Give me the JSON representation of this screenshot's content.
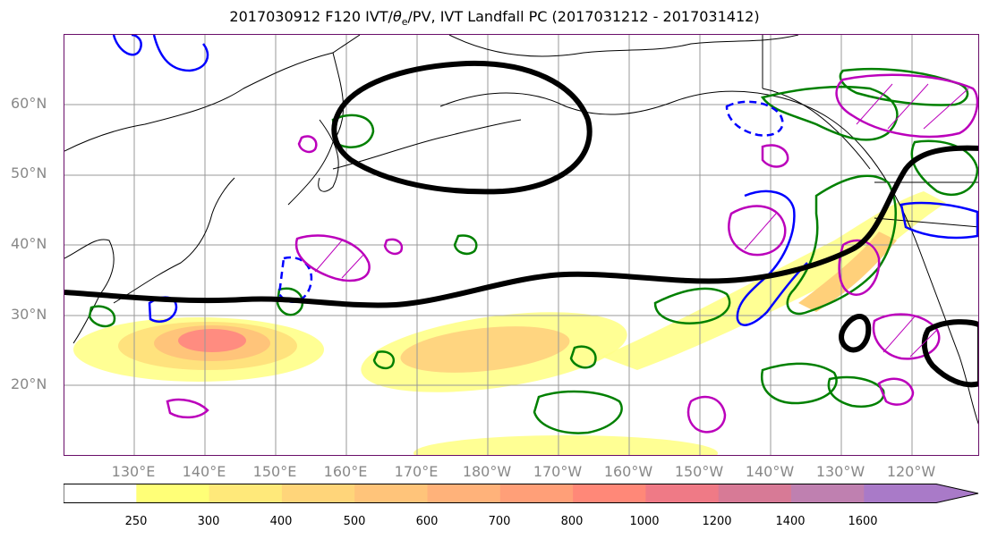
{
  "title": {
    "prefix": "2017030912 F120 IVT/",
    "theta": "θ",
    "theta_sub": "e",
    "suffix": "/PV, IVT Landfall PC (2017031212 - 2017031412)"
  },
  "lat_labels": [
    "60°N",
    "50°N",
    "40°N",
    "30°N",
    "20°N"
  ],
  "lon_labels": [
    "130°E",
    "140°E",
    "150°E",
    "160°E",
    "170°E",
    "180°W",
    "170°W",
    "160°W",
    "150°W",
    "140°W",
    "130°W",
    "120°W"
  ],
  "colorbar": {
    "ticks": [
      "250",
      "300",
      "400",
      "500",
      "600",
      "700",
      "800",
      "1000",
      "1200",
      "1400",
      "1600"
    ],
    "colors": [
      "#ffffff",
      "#ffff77",
      "#ffe97a",
      "#ffd57a",
      "#ffc47a",
      "#ffb27a",
      "#ff9f78",
      "#ff8878",
      "#ef7a86",
      "#d77a96",
      "#bf80b0",
      "#a97ac8"
    ]
  },
  "contour_colors": {
    "jet": "#000000",
    "positive_pv": "#008000",
    "negative": "#0000ff",
    "theta": "#bb00bb"
  }
}
